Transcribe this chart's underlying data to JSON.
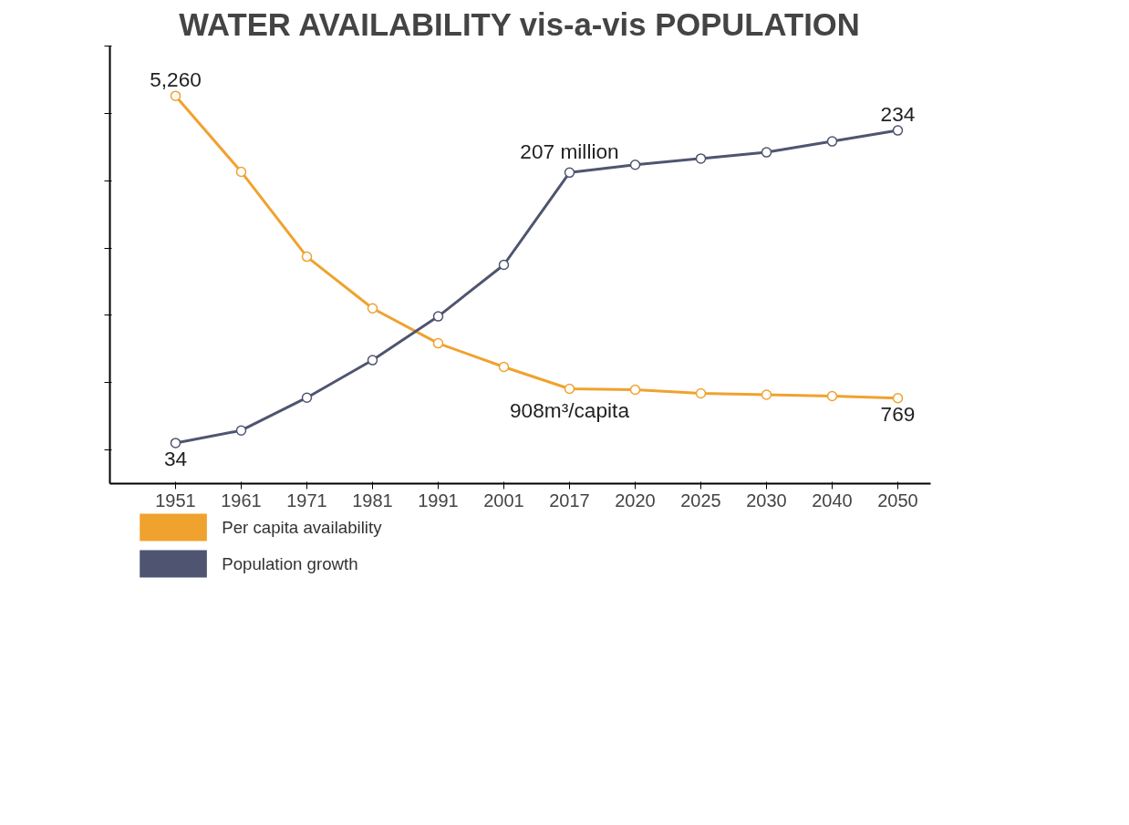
{
  "chart_data": {
    "type": "line",
    "title": "WATER AVAILABILITY vis-a-vis POPULATION",
    "categories": [
      "1951",
      "1961",
      "1971",
      "1981",
      "1991",
      "2001",
      "2017",
      "2020",
      "2025",
      "2030",
      "2040",
      "2050"
    ],
    "series": [
      {
        "name": "Per capita availability",
        "color": "#f0a22e",
        "values": [
          5260,
          4132,
          2871,
          2104,
          1584,
          1233,
          908,
          895,
          840,
          820,
          800,
          769
        ],
        "value_labels": [
          "5,260",
          null,
          null,
          null,
          null,
          null,
          "908m³/capita",
          null,
          null,
          null,
          null,
          "769"
        ]
      },
      {
        "name": "Population growth",
        "color": "#4f5570",
        "axis": "y2",
        "values": [
          34,
          42,
          63,
          87,
          115,
          148,
          207,
          212,
          216,
          220,
          227,
          234
        ],
        "value_labels": [
          "34",
          null,
          null,
          null,
          null,
          null,
          "207 million",
          null,
          null,
          null,
          null,
          "234"
        ]
      }
    ],
    "ylim": [
      -500,
      6000
    ],
    "y2lim": [
      8,
      288
    ],
    "tick_labels": "x",
    "marker": "circle",
    "legend": "bottom left",
    "grid": false
  }
}
